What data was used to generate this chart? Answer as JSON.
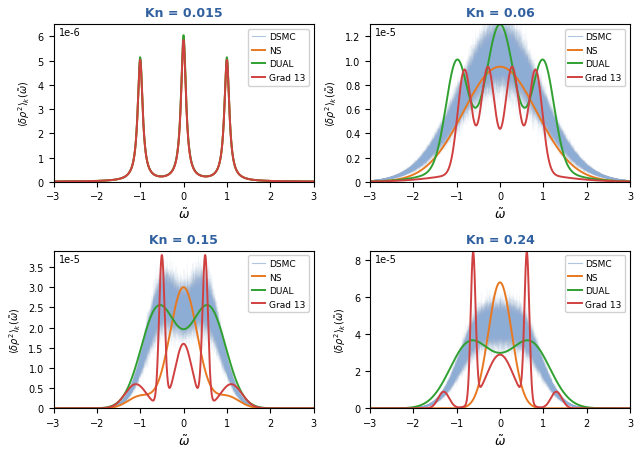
{
  "panels": [
    {
      "kn": 0.015,
      "scale_str": "1e-6",
      "ylim": [
        0,
        6.5e-06
      ],
      "yticks": [
        0,
        1e-06,
        2e-06,
        3e-06,
        4e-06,
        5e-06,
        6e-06
      ],
      "ytick_labels": [
        "0",
        "1",
        "2",
        "3",
        "4",
        "5",
        "6"
      ]
    },
    {
      "kn": 0.06,
      "scale_str": "1e-5",
      "ylim": [
        0,
        1.3e-05
      ],
      "yticks": [
        0,
        2e-06,
        4e-06,
        6e-06,
        8e-06,
        1e-05,
        1.2e-05
      ],
      "ytick_labels": [
        "0",
        "0.2",
        "0.4",
        "0.6",
        "0.8",
        "1.0",
        "1.2"
      ]
    },
    {
      "kn": 0.15,
      "scale_str": "1e-5",
      "ylim": [
        0,
        3.9e-05
      ],
      "yticks": [
        0,
        5e-06,
        1e-05,
        1.5e-05,
        2e-05,
        2.5e-05,
        3e-05,
        3.5e-05
      ],
      "ytick_labels": [
        "0",
        "0.5",
        "1.0",
        "1.5",
        "2.0",
        "2.5",
        "3.0",
        "3.5"
      ]
    },
    {
      "kn": 0.24,
      "scale_str": "1e-5",
      "ylim": [
        0,
        8.5e-05
      ],
      "yticks": [
        0,
        2e-05,
        4e-05,
        6e-05,
        8e-05
      ],
      "ytick_labels": [
        "0",
        "2",
        "4",
        "6",
        "8"
      ]
    }
  ],
  "colors": {
    "DSMC": "#8eadd4",
    "NS": "#e87820",
    "DUAL": "#30a030",
    "Grad13": "#d04040"
  },
  "legend_labels": [
    "DSMC",
    "NS",
    "DUAL",
    "Grad 13"
  ]
}
